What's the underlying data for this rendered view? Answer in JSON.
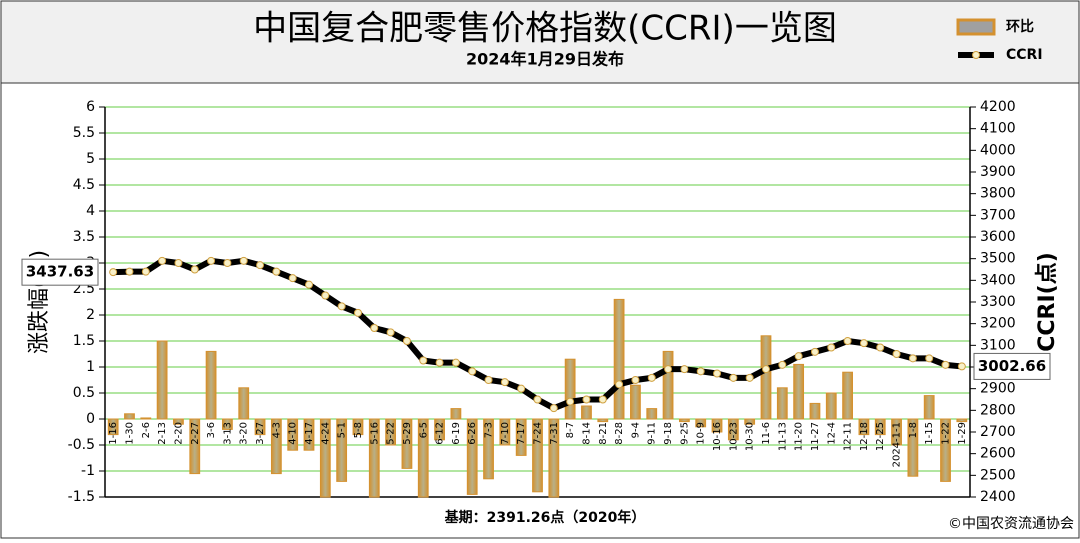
{
  "chart_data": {
    "type": "bar",
    "title": "中国复合肥零售价格指数(CCRI)一览图",
    "subtitle": "2024年1月29日发布",
    "ylabel": "涨跌幅(%)",
    "y2label": "CCRI(点)",
    "footnote": "基期：2391.26点（2020年）",
    "source": "©中国农资流通协会",
    "categories": [
      "1-16",
      "1-30",
      "2-6",
      "2-13",
      "2-20",
      "2-27",
      "3-6",
      "3-13",
      "3-20",
      "3-27",
      "4-3",
      "4-10",
      "4-17",
      "4-24",
      "5-1",
      "5-8",
      "5-16",
      "5-22",
      "5-29",
      "6-5",
      "6-12",
      "6-19",
      "6-26",
      "7-3",
      "7-10",
      "7-17",
      "7-24",
      "7-31",
      "8-7",
      "8-14",
      "8-21",
      "8-28",
      "9-4",
      "9-11",
      "9-18",
      "9-25",
      "10-9",
      "10-16",
      "10-23",
      "10-30",
      "11-6",
      "11-13",
      "11-20",
      "11-27",
      "12-4",
      "12-11",
      "12-18",
      "12-25",
      "2024-1-1",
      "1-8",
      "1-15",
      "1-22",
      "1-29"
    ],
    "series": [
      {
        "name": "环比",
        "type": "bar",
        "color": "#d4912f",
        "values": [
          -0.3,
          0.1,
          0.02,
          1.5,
          -0.1,
          -1.05,
          1.3,
          -0.2,
          0.6,
          -0.3,
          -1.05,
          -0.6,
          -0.6,
          -1.5,
          -1.2,
          -0.3,
          -1.5,
          -0.5,
          -0.95,
          -1.5,
          -0.4,
          0.2,
          -1.45,
          -1.15,
          -0.5,
          -0.7,
          -1.4,
          -1.5,
          1.15,
          0.25,
          -0.05,
          2.3,
          0.65,
          0.2,
          1.3,
          -0.05,
          -0.15,
          -0.25,
          -0.4,
          -0.1,
          1.6,
          0.6,
          1.05,
          0.3,
          0.5,
          0.9,
          -0.3,
          -0.3,
          -0.5,
          -1.1,
          0.45,
          -1.2,
          -0.05
        ]
      },
      {
        "name": "CCRI",
        "type": "line",
        "axis": "y2",
        "color": "#000000",
        "values": [
          3437.63,
          3440,
          3440,
          3490,
          3480,
          3450,
          3490,
          3480,
          3490,
          3470,
          3440,
          3410,
          3380,
          3330,
          3280,
          3250,
          3180,
          3160,
          3120,
          3030,
          3020,
          3020,
          2980,
          2940,
          2930,
          2900,
          2850,
          2810,
          2840,
          2850,
          2850,
          2920,
          2940,
          2950,
          2990,
          2990,
          2980,
          2970,
          2950,
          2950,
          2990,
          3010,
          3050,
          3070,
          3090,
          3120,
          3110,
          3090,
          3060,
          3040,
          3040,
          3010,
          3002.66
        ]
      }
    ],
    "ylim": [
      -1.5,
      6
    ],
    "yticks": [
      -1.5,
      -1,
      -0.5,
      0,
      0.5,
      1,
      1.5,
      2,
      2.5,
      3,
      3.5,
      4,
      4.5,
      5,
      5.5,
      6
    ],
    "y2lim": [
      2400,
      4200
    ],
    "y2ticks": [
      2400,
      2500,
      2600,
      2700,
      2800,
      2900,
      3000,
      3100,
      3200,
      3300,
      3400,
      3500,
      3600,
      3700,
      3800,
      3900,
      4000,
      4100,
      4200
    ],
    "grid": true,
    "grid_color": "#66cc44",
    "legend": "top-right"
  }
}
